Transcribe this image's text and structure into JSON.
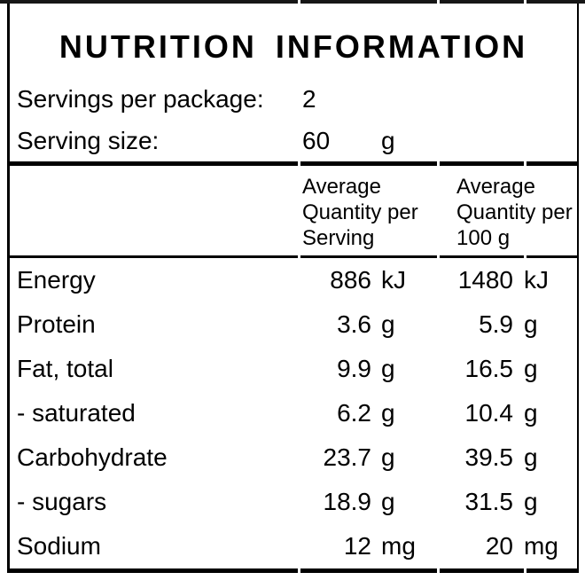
{
  "title": "NUTRITION INFORMATION",
  "servings": {
    "label": "Servings per package:",
    "value": "2"
  },
  "serving_size": {
    "label": "Serving size:",
    "value": "60",
    "unit": "g"
  },
  "table": {
    "col1_header": "Average\nQuantity per\nServing",
    "col2_header": "Average\nQuantity per\n100 g",
    "rows": [
      {
        "nutrient": "Energy",
        "per_serving": "886",
        "per_serving_unit": "kJ",
        "per_100g": "1480",
        "per_100g_unit": "kJ"
      },
      {
        "nutrient": "Protein",
        "per_serving": "3.6",
        "per_serving_unit": "g",
        "per_100g": "5.9",
        "per_100g_unit": "g"
      },
      {
        "nutrient": "Fat, total",
        "per_serving": "9.9",
        "per_serving_unit": "g",
        "per_100g": "16.5",
        "per_100g_unit": "g"
      },
      {
        "nutrient": "- saturated",
        "per_serving": "6.2",
        "per_serving_unit": "g",
        "per_100g": "10.4",
        "per_100g_unit": "g"
      },
      {
        "nutrient": "Carbohydrate",
        "per_serving": "23.7",
        "per_serving_unit": "g",
        "per_100g": "39.5",
        "per_100g_unit": "g"
      },
      {
        "nutrient": "- sugars",
        "per_serving": "18.9",
        "per_serving_unit": "g",
        "per_100g": "31.5",
        "per_100g_unit": "g"
      },
      {
        "nutrient": "Sodium",
        "per_serving": "12",
        "per_serving_unit": "mg",
        "per_100g": "20",
        "per_100g_unit": "mg"
      }
    ]
  },
  "colors": {
    "text": "#000000",
    "border": "#000000",
    "background": "#ffffff"
  }
}
